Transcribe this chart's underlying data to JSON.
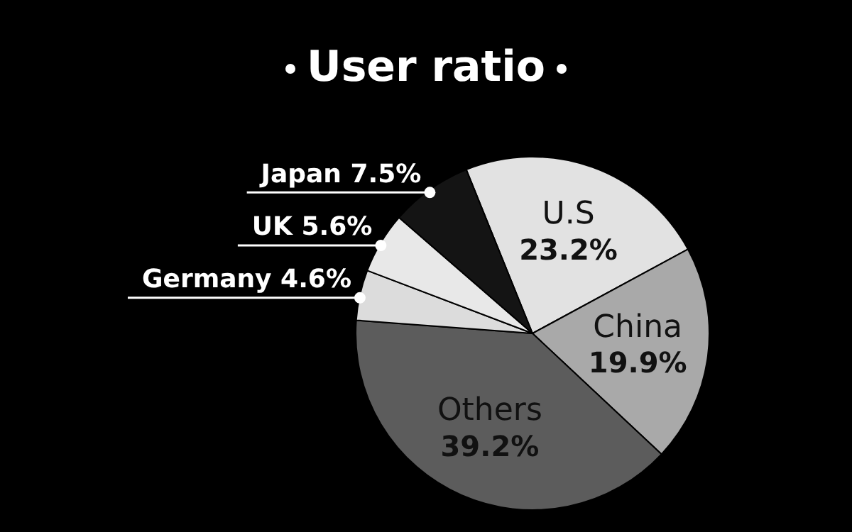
{
  "chart_data": {
    "type": "pie",
    "title": "User ratio",
    "categories": [
      "U.S",
      "China",
      "Others",
      "Germany",
      "UK",
      "Japan"
    ],
    "values": [
      23.2,
      19.9,
      39.2,
      4.6,
      5.6,
      7.5
    ],
    "value_labels": [
      "23.2%",
      "19.9%",
      "39.2%",
      "4.6%",
      "5.6%",
      "7.5%"
    ],
    "colors": [
      "#e2e2e2",
      "#a9a9a9",
      "#5c5c5c",
      "#dcdcdc",
      "#e8e8e8",
      "#141414"
    ],
    "legend": false
  }
}
